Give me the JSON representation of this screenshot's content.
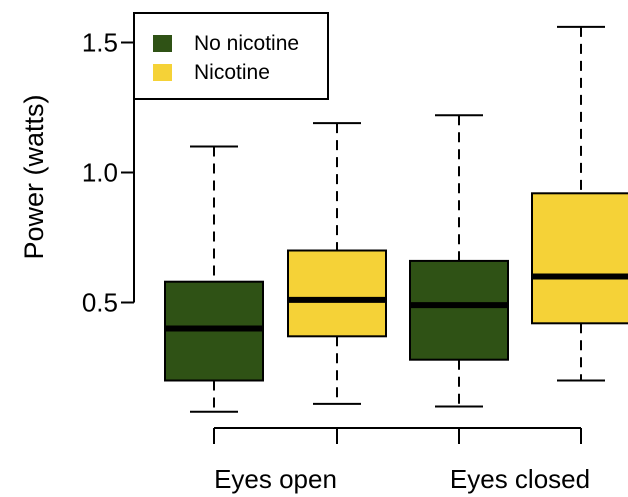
{
  "chart_data": {
    "type": "boxplot",
    "title": "",
    "xlabel": "",
    "ylabel": "Power (watts)",
    "ylim": [
      0,
      1.6
    ],
    "yticks": [
      0.5,
      1.0,
      1.5
    ],
    "ytick_labels": [
      "0.5",
      "1.0",
      "1.5"
    ],
    "groups": [
      {
        "label": "Eyes open",
        "boxes": [
          0,
          1
        ]
      },
      {
        "label": "Eyes closed",
        "boxes": [
          2,
          3
        ]
      }
    ],
    "legend": {
      "position": "top-left",
      "entries": [
        {
          "label": "No nicotine",
          "color": "#2f5215"
        },
        {
          "label": "Nicotine",
          "color": "#f5d237"
        }
      ]
    },
    "boxes": [
      {
        "group": "Eyes open",
        "series": "No nicotine",
        "whisker_low": 0.08,
        "q1": 0.2,
        "median": 0.4,
        "q3": 0.58,
        "whisker_high": 1.1
      },
      {
        "group": "Eyes open",
        "series": "Nicotine",
        "whisker_low": 0.11,
        "q1": 0.37,
        "median": 0.51,
        "q3": 0.7,
        "whisker_high": 1.19
      },
      {
        "group": "Eyes closed",
        "series": "No nicotine",
        "whisker_low": 0.1,
        "q1": 0.28,
        "median": 0.49,
        "q3": 0.66,
        "whisker_high": 1.22
      },
      {
        "group": "Eyes closed",
        "series": "Nicotine",
        "whisker_low": 0.2,
        "q1": 0.42,
        "median": 0.6,
        "q3": 0.92,
        "whisker_high": 1.56
      }
    ]
  }
}
